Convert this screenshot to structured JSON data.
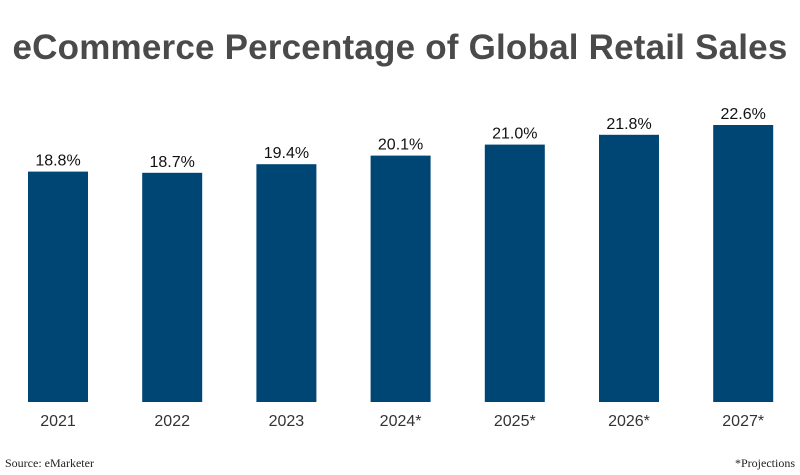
{
  "title": "eCommerce Percentage of Global Retail Sales",
  "source": "Source: eMarketer",
  "footnote": "*Projections",
  "colors": {
    "bar": "#004674",
    "label": "#111111",
    "tick": "#333333",
    "title": "#4a4a4a"
  },
  "chart_data": {
    "type": "bar",
    "title": "eCommerce Percentage of Global Retail Sales",
    "categories": [
      "2021",
      "2022",
      "2023",
      "2024*",
      "2025*",
      "2026*",
      "2027*"
    ],
    "values": [
      18.8,
      18.7,
      19.4,
      20.1,
      21.0,
      21.8,
      22.6
    ],
    "value_labels": [
      "18.8%",
      "18.7%",
      "19.4%",
      "20.1%",
      "21.0%",
      "21.8%",
      "22.6%"
    ],
    "xlabel": "",
    "ylabel": "",
    "ylim": [
      0,
      22.6
    ],
    "grid": false,
    "legend": "none"
  }
}
